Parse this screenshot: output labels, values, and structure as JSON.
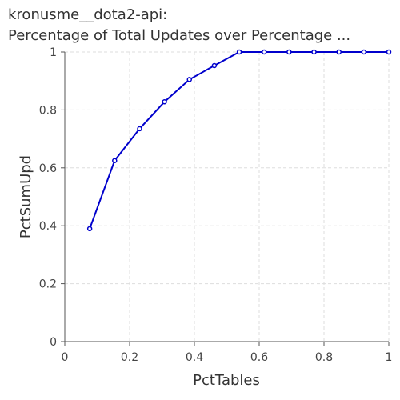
{
  "chart_data": {
    "type": "line",
    "title_lines": [
      "kronusme__dota2-api:",
      "Percentage of Total Updates over Percentage ..."
    ],
    "xlabel": "PctTables",
    "ylabel": "PctSumUpd",
    "xlim": [
      0,
      1
    ],
    "ylim": [
      0,
      1
    ],
    "x_ticks": [
      "0",
      "0.2",
      "0.4",
      "0.6",
      "0.8",
      "1"
    ],
    "y_ticks": [
      "0",
      "0.2",
      "0.4",
      "0.6",
      "0.8",
      "1"
    ],
    "grid": true,
    "series": [
      {
        "color": "#0000cc",
        "x": [
          0.0769,
          0.1538,
          0.2308,
          0.3077,
          0.3846,
          0.4615,
          0.5385,
          0.6154,
          0.6923,
          0.7692,
          0.8462,
          0.9231,
          1.0
        ],
        "y": [
          0.39,
          0.625,
          0.735,
          0.828,
          0.905,
          0.953,
          1.0,
          1.0,
          1.0,
          1.0,
          1.0,
          1.0,
          1.0
        ]
      }
    ]
  }
}
